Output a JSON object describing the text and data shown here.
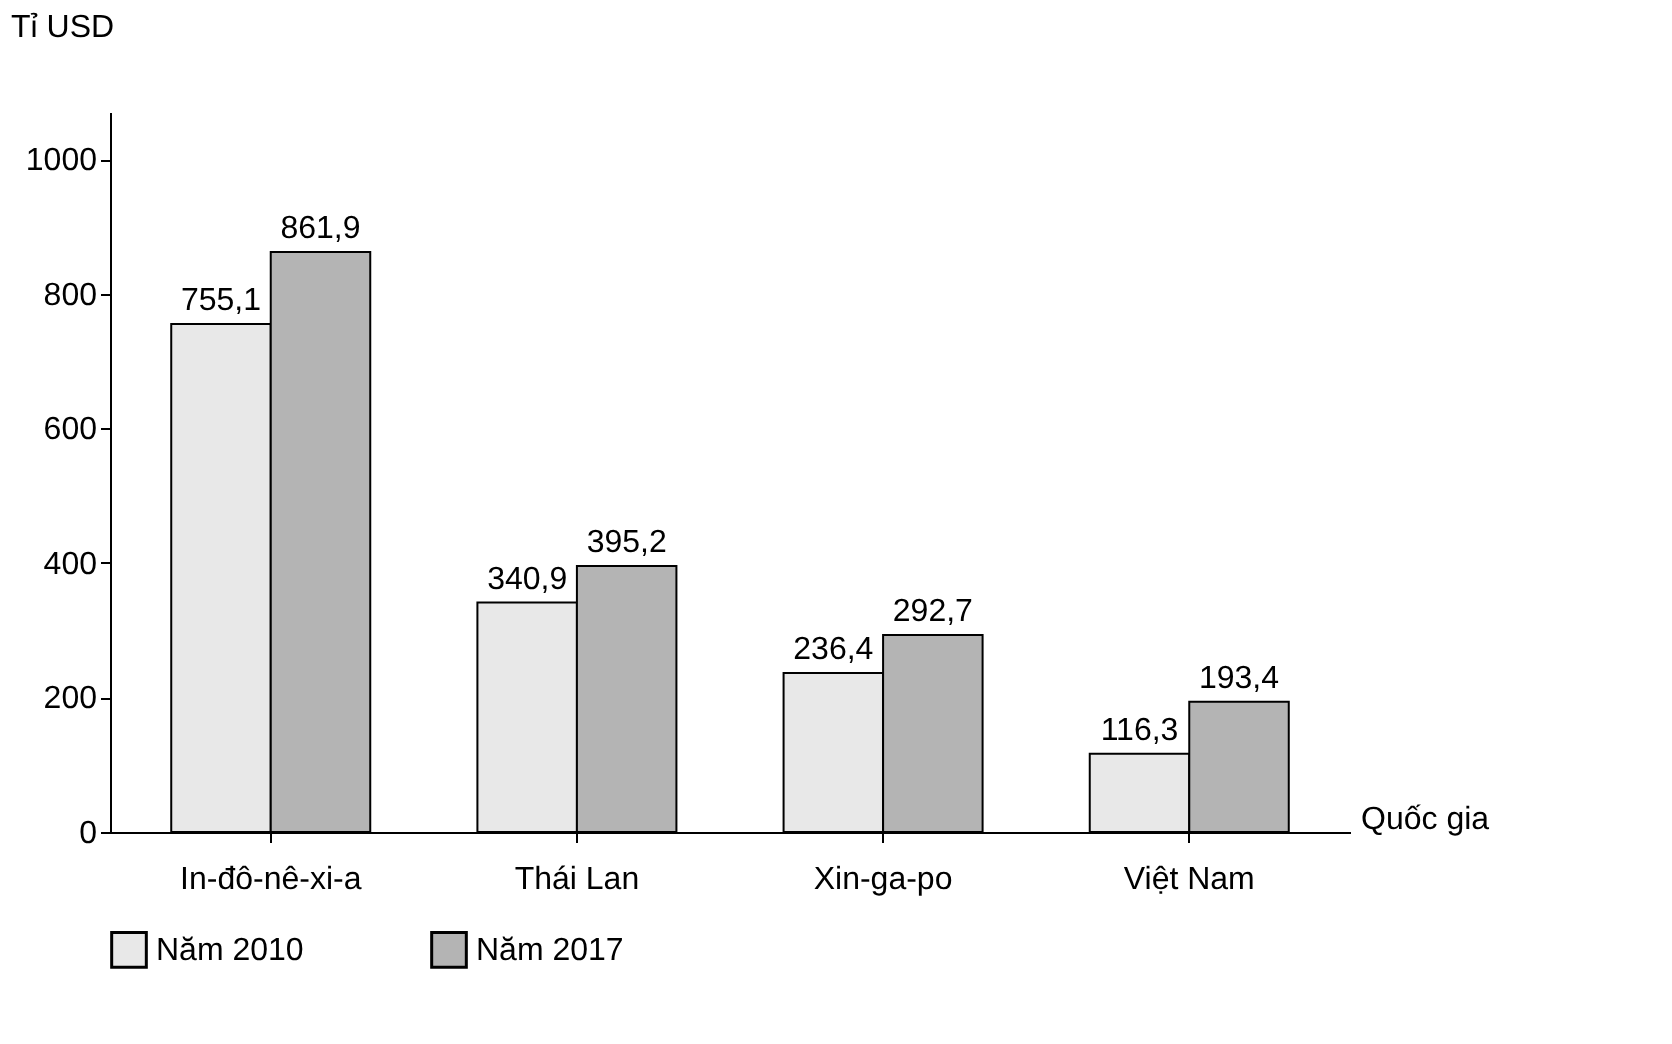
{
  "chart_data": {
    "type": "bar",
    "xlabel": "Quốc gia",
    "ylabel": "Tỉ USD",
    "categories": [
      "In-đô-nê-xi-a",
      "Thái Lan",
      "Xin-ga-po",
      "Việt Nam"
    ],
    "series": [
      {
        "name": "Năm 2010",
        "color": "#e8e8e8",
        "values": [
          755.1,
          340.9,
          236.4,
          116.3
        ],
        "value_labels": [
          "755,1",
          "340,9",
          "236,4",
          "116,3"
        ]
      },
      {
        "name": "Năm 2017",
        "color": "#b4b4b4",
        "values": [
          861.9,
          395.2,
          292.7,
          193.4
        ],
        "value_labels": [
          "861,9",
          "395,2",
          "292,7",
          "193,4"
        ]
      }
    ],
    "ylim": [
      0,
      1070
    ],
    "yticks": [
      0,
      200,
      400,
      600,
      800,
      1000
    ],
    "grid": false,
    "legend": "bottom"
  }
}
